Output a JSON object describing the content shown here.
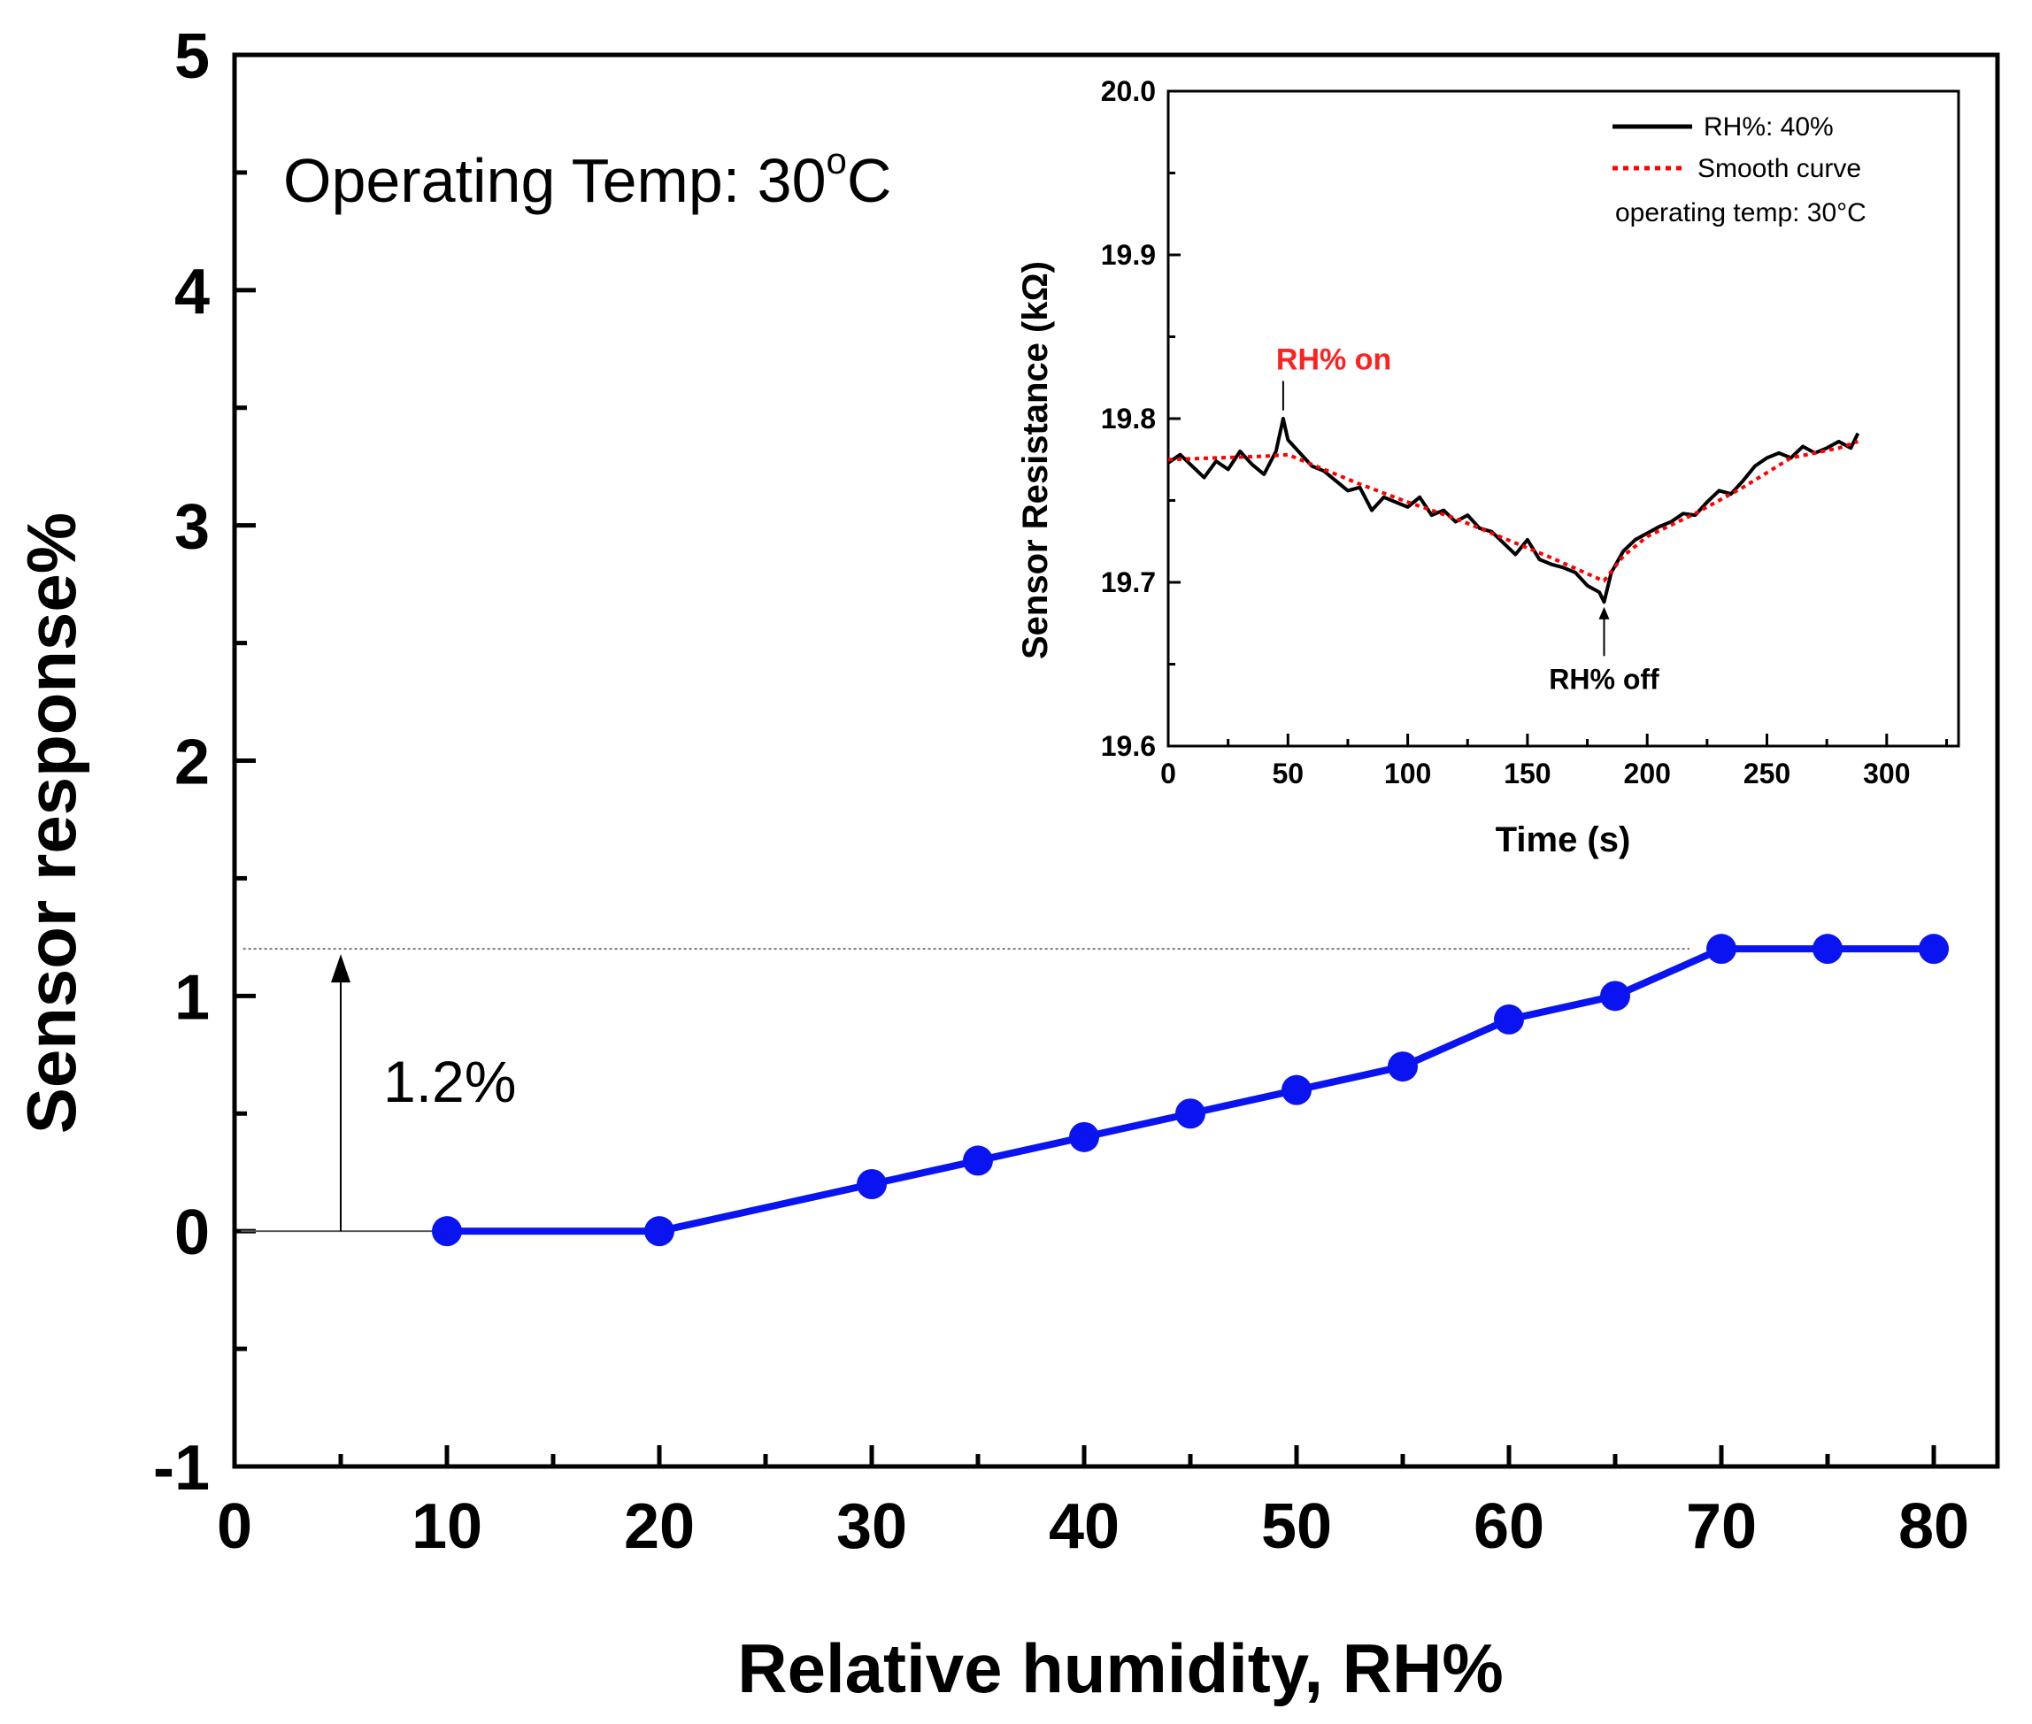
{
  "chart_data": [
    {
      "type": "line",
      "title": "",
      "xlabel": "Relative humidity, RH%",
      "ylabel": "Sensor response%",
      "xlim": [
        0,
        83
      ],
      "ylim": [
        -1,
        5
      ],
      "x_ticks": [
        "0",
        "10",
        "20",
        "30",
        "40",
        "50",
        "60",
        "70",
        "80"
      ],
      "y_ticks": [
        "-1",
        "0",
        "1",
        "2",
        "3",
        "4",
        "5"
      ],
      "series": [
        {
          "name": "Sensor response",
          "color": "#0a14f0",
          "x": [
            10,
            20,
            30,
            35,
            40,
            45,
            50,
            55,
            60,
            65,
            70,
            75,
            80
          ],
          "y": [
            0,
            0,
            0.2,
            0.3,
            0.4,
            0.5,
            0.6,
            0.7,
            0.9,
            1.0,
            1.2,
            1.2,
            1.2
          ]
        }
      ],
      "annotations": {
        "operating_temp": "Operating Temp: 30",
        "degree_sup": "o",
        "unit": "C",
        "response_label": "1.2%",
        "reference_level": 1.2,
        "arrow_x": 5
      }
    },
    {
      "type": "line",
      "title": "",
      "xlabel": "Time (s)",
      "ylabel": "Sensor Resistance (kΩ)",
      "xlim": [
        0,
        330
      ],
      "ylim": [
        19.6,
        20.0
      ],
      "x_ticks": [
        "0",
        "50",
        "100",
        "150",
        "200",
        "250",
        "300"
      ],
      "y_ticks": [
        "19.6",
        "19.7",
        "19.8",
        "19.9",
        "20.0"
      ],
      "series": [
        {
          "name": "RH%: 40%",
          "color": "#000000",
          "x": [
            0,
            5,
            10,
            15,
            20,
            25,
            30,
            35,
            40,
            45,
            48,
            50,
            55,
            60,
            65,
            70,
            75,
            80,
            85,
            90,
            95,
            100,
            105,
            110,
            115,
            120,
            125,
            130,
            135,
            140,
            145,
            150,
            155,
            160,
            165,
            170,
            175,
            180,
            182,
            185,
            190,
            195,
            200,
            205,
            210,
            215,
            220,
            225,
            230,
            235,
            240,
            245,
            250,
            255,
            260,
            265,
            270,
            275,
            280,
            285,
            288
          ],
          "y": [
            19.773,
            19.778,
            19.771,
            19.764,
            19.774,
            19.769,
            19.78,
            19.772,
            19.766,
            19.78,
            19.8,
            19.787,
            19.779,
            19.771,
            19.768,
            19.762,
            19.756,
            19.758,
            19.744,
            19.752,
            19.749,
            19.746,
            19.752,
            19.741,
            19.744,
            19.737,
            19.741,
            19.733,
            19.731,
            19.724,
            19.717,
            19.726,
            19.714,
            19.711,
            19.709,
            19.706,
            19.698,
            19.694,
            19.688,
            19.706,
            19.719,
            19.726,
            19.73,
            19.734,
            19.737,
            19.742,
            19.741,
            19.749,
            19.756,
            19.754,
            19.762,
            19.771,
            19.776,
            19.779,
            19.776,
            19.783,
            19.779,
            19.782,
            19.786,
            19.782,
            19.791
          ]
        },
        {
          "name": "Smooth curve",
          "color": "#ff0000",
          "x": [
            0,
            20,
            40,
            50,
            60,
            80,
            100,
            120,
            140,
            160,
            180,
            182,
            190,
            200,
            220,
            240,
            260,
            280,
            288
          ],
          "y": [
            19.775,
            19.776,
            19.777,
            19.778,
            19.772,
            19.76,
            19.749,
            19.739,
            19.727,
            19.715,
            19.702,
            19.701,
            19.716,
            19.728,
            19.742,
            19.758,
            19.776,
            19.782,
            19.786
          ]
        }
      ],
      "legend": {
        "series1": "RH%: 40%",
        "series2": "Smooth curve",
        "note": "operating temp: 30°C"
      },
      "annotations": {
        "on_label": "RH% on",
        "off_label": "RH% off",
        "on_time": 48,
        "off_time": 182
      }
    }
  ]
}
